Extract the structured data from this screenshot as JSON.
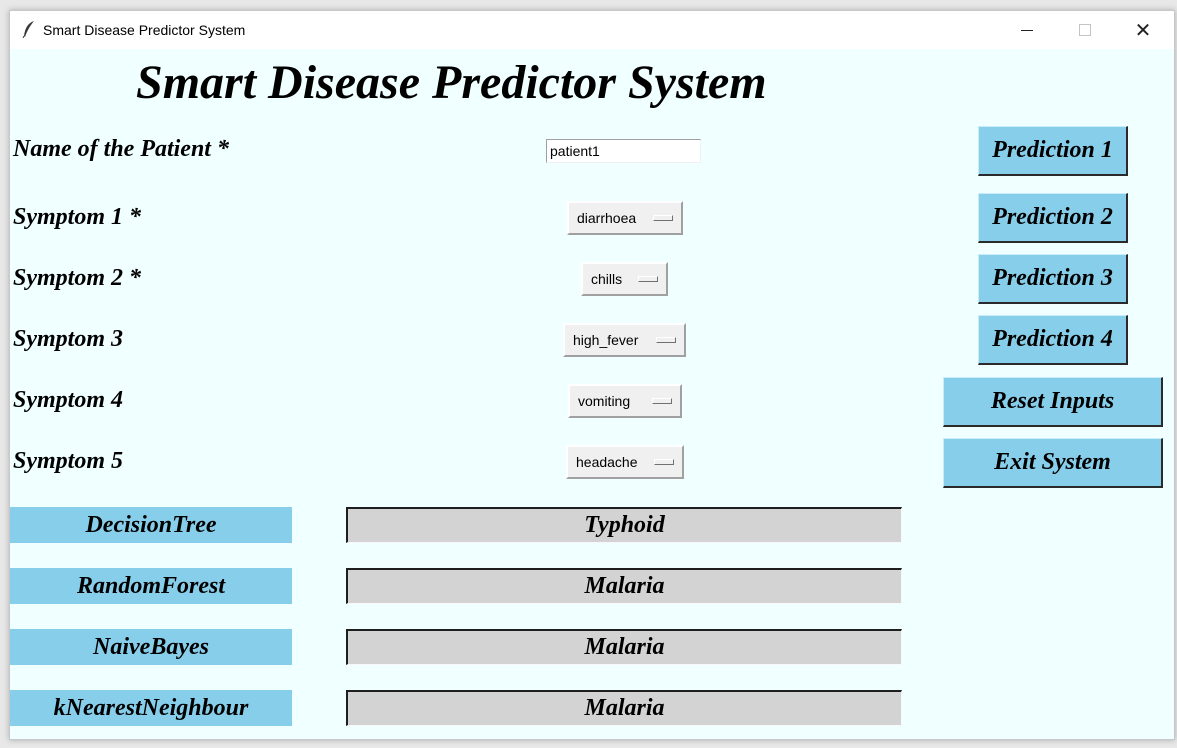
{
  "window": {
    "title": "Smart Disease Predictor System",
    "icon": "feather-icon"
  },
  "heading": "Smart Disease Predictor System",
  "form": {
    "name_label": "Name of the Patient *",
    "name_value": "patient1",
    "symptoms": [
      {
        "label": "Symptom 1 *",
        "value": "diarrhoea"
      },
      {
        "label": "Symptom 2 *",
        "value": "chills"
      },
      {
        "label": "Symptom 3",
        "value": "high_fever"
      },
      {
        "label": "Symptom 4",
        "value": "vomiting"
      },
      {
        "label": "Symptom 5",
        "value": "headache"
      }
    ]
  },
  "buttons": {
    "prediction1": "Prediction 1",
    "prediction2": "Prediction 2",
    "prediction3": "Prediction 3",
    "prediction4": "Prediction 4",
    "reset": "Reset Inputs",
    "exit": "Exit System"
  },
  "results": [
    {
      "algorithm": "DecisionTree",
      "prediction": "Typhoid"
    },
    {
      "algorithm": "RandomForest",
      "prediction": "Malaria"
    },
    {
      "algorithm": "NaiveBayes",
      "prediction": "Malaria"
    },
    {
      "algorithm": "kNearestNeighbour",
      "prediction": "Malaria"
    }
  ],
  "colors": {
    "background": "#f0ffff",
    "button": "#87ceeb",
    "result_box": "#d3d3d3"
  }
}
